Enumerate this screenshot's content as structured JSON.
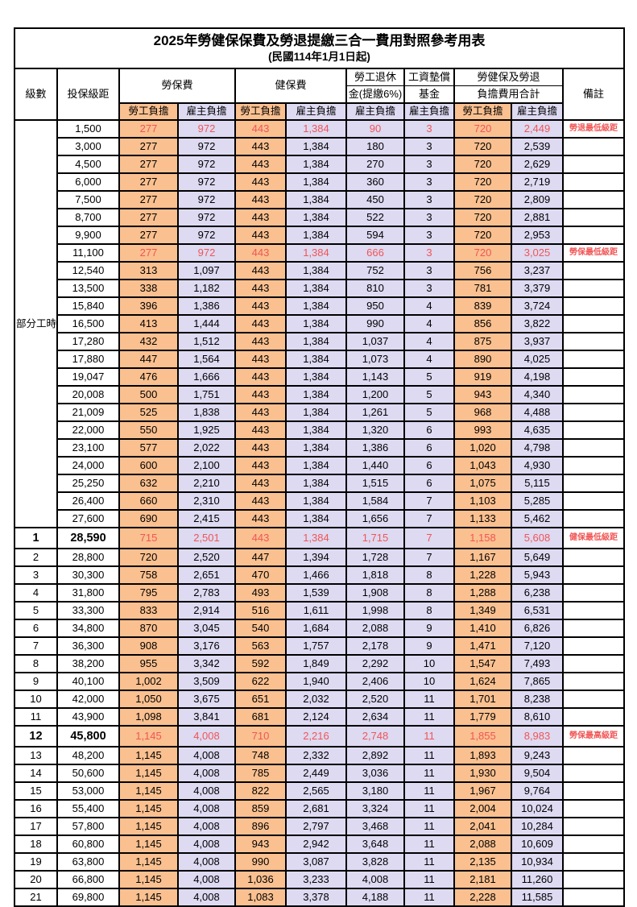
{
  "table": {
    "title": "2025年勞健保保費及勞退提繳三合一費用對照參考用表",
    "subtitle": "(民國114年1月1日起)",
    "headers": {
      "level": "級數",
      "bracket": "投保級距",
      "labor_fee": "勞保費",
      "health_fee": "健保費",
      "pension_line1": "勞工退休",
      "pension_line2": "金(提繳6%)",
      "fund_line1": "工資墊償",
      "fund_line2": "基金",
      "total_line1": "勞健保及勞退",
      "total_line2": "負擔費用合計",
      "note": "備註",
      "employee_share": "勞工負擔",
      "employer_share": "雇主負擔"
    },
    "part_time_label": "部分工時",
    "part_time_rowspan": 23,
    "colors": {
      "employee_bg": "#FAC090",
      "employer_bg": "#DDDAF2",
      "highlight_text": "#F15555",
      "border": "#000000"
    },
    "row_fields": [
      "level",
      "bracket",
      "labor_employee",
      "labor_employer",
      "health_employee",
      "health_employer",
      "pension_employer",
      "fund_employer",
      "total_employee",
      "total_employer",
      "note",
      "highlight"
    ],
    "rows": [
      [
        "",
        "1,500",
        "277",
        "972",
        "443",
        "1,384",
        "90",
        "3",
        "720",
        "2,449",
        "勞退最低級距",
        "red"
      ],
      [
        "",
        "3,000",
        "277",
        "972",
        "443",
        "1,384",
        "180",
        "3",
        "720",
        "2,539",
        "",
        ""
      ],
      [
        "",
        "4,500",
        "277",
        "972",
        "443",
        "1,384",
        "270",
        "3",
        "720",
        "2,629",
        "",
        ""
      ],
      [
        "",
        "6,000",
        "277",
        "972",
        "443",
        "1,384",
        "360",
        "3",
        "720",
        "2,719",
        "",
        ""
      ],
      [
        "",
        "7,500",
        "277",
        "972",
        "443",
        "1,384",
        "450",
        "3",
        "720",
        "2,809",
        "",
        ""
      ],
      [
        "",
        "8,700",
        "277",
        "972",
        "443",
        "1,384",
        "522",
        "3",
        "720",
        "2,881",
        "",
        ""
      ],
      [
        "",
        "9,900",
        "277",
        "972",
        "443",
        "1,384",
        "594",
        "3",
        "720",
        "2,953",
        "",
        ""
      ],
      [
        "",
        "11,100",
        "277",
        "972",
        "443",
        "1,384",
        "666",
        "3",
        "720",
        "3,025",
        "勞保最低級距",
        "red"
      ],
      [
        "",
        "12,540",
        "313",
        "1,097",
        "443",
        "1,384",
        "752",
        "3",
        "756",
        "3,237",
        "",
        ""
      ],
      [
        "",
        "13,500",
        "338",
        "1,182",
        "443",
        "1,384",
        "810",
        "3",
        "781",
        "3,379",
        "",
        ""
      ],
      [
        "",
        "15,840",
        "396",
        "1,386",
        "443",
        "1,384",
        "950",
        "4",
        "839",
        "3,724",
        "",
        ""
      ],
      [
        "",
        "16,500",
        "413",
        "1,444",
        "443",
        "1,384",
        "990",
        "4",
        "856",
        "3,822",
        "",
        ""
      ],
      [
        "",
        "17,280",
        "432",
        "1,512",
        "443",
        "1,384",
        "1,037",
        "4",
        "875",
        "3,937",
        "",
        ""
      ],
      [
        "",
        "17,880",
        "447",
        "1,564",
        "443",
        "1,384",
        "1,073",
        "4",
        "890",
        "4,025",
        "",
        ""
      ],
      [
        "",
        "19,047",
        "476",
        "1,666",
        "443",
        "1,384",
        "1,143",
        "5",
        "919",
        "4,198",
        "",
        ""
      ],
      [
        "",
        "20,008",
        "500",
        "1,751",
        "443",
        "1,384",
        "1,200",
        "5",
        "943",
        "4,340",
        "",
        ""
      ],
      [
        "",
        "21,009",
        "525",
        "1,838",
        "443",
        "1,384",
        "1,261",
        "5",
        "968",
        "4,488",
        "",
        ""
      ],
      [
        "",
        "22,000",
        "550",
        "1,925",
        "443",
        "1,384",
        "1,320",
        "6",
        "993",
        "4,635",
        "",
        ""
      ],
      [
        "",
        "23,100",
        "577",
        "2,022",
        "443",
        "1,384",
        "1,386",
        "6",
        "1,020",
        "4,798",
        "",
        ""
      ],
      [
        "",
        "24,000",
        "600",
        "2,100",
        "443",
        "1,384",
        "1,440",
        "6",
        "1,043",
        "4,930",
        "",
        ""
      ],
      [
        "",
        "25,250",
        "632",
        "2,210",
        "443",
        "1,384",
        "1,515",
        "6",
        "1,075",
        "5,115",
        "",
        ""
      ],
      [
        "",
        "26,400",
        "660",
        "2,310",
        "443",
        "1,384",
        "1,584",
        "7",
        "1,103",
        "5,285",
        "",
        ""
      ],
      [
        "",
        "27,600",
        "690",
        "2,415",
        "443",
        "1,384",
        "1,656",
        "7",
        "1,133",
        "5,462",
        "",
        ""
      ],
      [
        "1",
        "28,590",
        "715",
        "2,501",
        "443",
        "1,384",
        "1,715",
        "7",
        "1,158",
        "5,608",
        "健保最低級距",
        "red-bold"
      ],
      [
        "2",
        "28,800",
        "720",
        "2,520",
        "447",
        "1,394",
        "1,728",
        "7",
        "1,167",
        "5,649",
        "",
        ""
      ],
      [
        "3",
        "30,300",
        "758",
        "2,651",
        "470",
        "1,466",
        "1,818",
        "8",
        "1,228",
        "5,943",
        "",
        ""
      ],
      [
        "4",
        "31,800",
        "795",
        "2,783",
        "493",
        "1,539",
        "1,908",
        "8",
        "1,288",
        "6,238",
        "",
        ""
      ],
      [
        "5",
        "33,300",
        "833",
        "2,914",
        "516",
        "1,611",
        "1,998",
        "8",
        "1,349",
        "6,531",
        "",
        ""
      ],
      [
        "6",
        "34,800",
        "870",
        "3,045",
        "540",
        "1,684",
        "2,088",
        "9",
        "1,410",
        "6,826",
        "",
        ""
      ],
      [
        "7",
        "36,300",
        "908",
        "3,176",
        "563",
        "1,757",
        "2,178",
        "9",
        "1,471",
        "7,120",
        "",
        ""
      ],
      [
        "8",
        "38,200",
        "955",
        "3,342",
        "592",
        "1,849",
        "2,292",
        "10",
        "1,547",
        "7,493",
        "",
        ""
      ],
      [
        "9",
        "40,100",
        "1,002",
        "3,509",
        "622",
        "1,940",
        "2,406",
        "10",
        "1,624",
        "7,865",
        "",
        ""
      ],
      [
        "10",
        "42,000",
        "1,050",
        "3,675",
        "651",
        "2,032",
        "2,520",
        "11",
        "1,701",
        "8,238",
        "",
        ""
      ],
      [
        "11",
        "43,900",
        "1,098",
        "3,841",
        "681",
        "2,124",
        "2,634",
        "11",
        "1,779",
        "8,610",
        "",
        ""
      ],
      [
        "12",
        "45,800",
        "1,145",
        "4,008",
        "710",
        "2,216",
        "2,748",
        "11",
        "1,855",
        "8,983",
        "勞保最高級距",
        "red-bold"
      ],
      [
        "13",
        "48,200",
        "1,145",
        "4,008",
        "748",
        "2,332",
        "2,892",
        "11",
        "1,893",
        "9,243",
        "",
        ""
      ],
      [
        "14",
        "50,600",
        "1,145",
        "4,008",
        "785",
        "2,449",
        "3,036",
        "11",
        "1,930",
        "9,504",
        "",
        ""
      ],
      [
        "15",
        "53,000",
        "1,145",
        "4,008",
        "822",
        "2,565",
        "3,180",
        "11",
        "1,967",
        "9,764",
        "",
        ""
      ],
      [
        "16",
        "55,400",
        "1,145",
        "4,008",
        "859",
        "2,681",
        "3,324",
        "11",
        "2,004",
        "10,024",
        "",
        ""
      ],
      [
        "17",
        "57,800",
        "1,145",
        "4,008",
        "896",
        "2,797",
        "3,468",
        "11",
        "2,041",
        "10,284",
        "",
        ""
      ],
      [
        "18",
        "60,800",
        "1,145",
        "4,008",
        "943",
        "2,942",
        "3,648",
        "11",
        "2,088",
        "10,609",
        "",
        ""
      ],
      [
        "19",
        "63,800",
        "1,145",
        "4,008",
        "990",
        "3,087",
        "3,828",
        "11",
        "2,135",
        "10,934",
        "",
        ""
      ],
      [
        "20",
        "66,800",
        "1,145",
        "4,008",
        "1,036",
        "3,233",
        "4,008",
        "11",
        "2,181",
        "11,260",
        "",
        ""
      ],
      [
        "21",
        "69,800",
        "1,145",
        "4,008",
        "1,083",
        "3,378",
        "4,188",
        "11",
        "2,228",
        "11,585",
        "",
        ""
      ]
    ]
  }
}
